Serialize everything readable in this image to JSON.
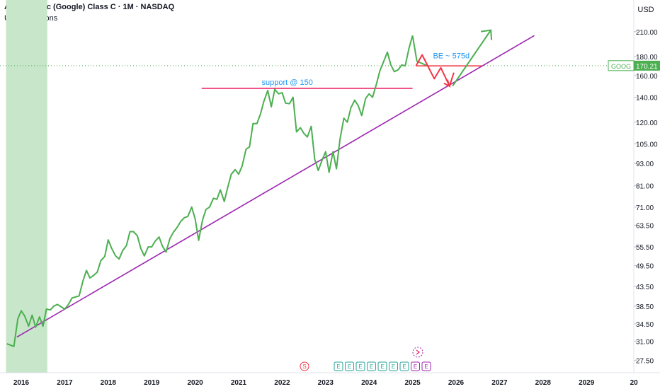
{
  "header": {
    "title": "Alphabet Inc (Google) Class C · 1M · NASDAQ",
    "indicator": "US Recessions",
    "currency": "USD"
  },
  "price_tag": {
    "symbol": "GOOG",
    "value": "170.21"
  },
  "event_markers": {
    "split_label": "S",
    "earnings_label": "E",
    "earnings_count": 9
  },
  "colors": {
    "price": "#4caf50",
    "trendline": "#9c27b0",
    "support": "#e91e63",
    "recession": "#c8e6c9",
    "forecast": "#f23645",
    "annotation_text": "#2196f3"
  },
  "chart_data": {
    "type": "line",
    "title": "Alphabet Inc (Google) Class C · 1M · NASDAQ",
    "xlabel": "",
    "ylabel": "",
    "y_scale": "log",
    "ylim": [
      25.5,
      226
    ],
    "xlim": [
      2015.65,
      2030.0
    ],
    "y_ticks": [
      "210.00",
      "180.00",
      "160.00",
      "140.00",
      "120.00",
      "105.00",
      "93.00",
      "81.00",
      "71.00",
      "63.50",
      "55.50",
      "49.50",
      "43.50",
      "38.50",
      "34.50",
      "31.00",
      "27.50"
    ],
    "x_ticks": [
      "2016",
      "2017",
      "2018",
      "2019",
      "2020",
      "2021",
      "2022",
      "2023",
      "2024",
      "2025",
      "2026",
      "2027",
      "2028",
      "2029",
      "20"
    ],
    "grid": true,
    "recession_band": {
      "from": 2015.65,
      "to": 2016.6
    },
    "series": [
      {
        "name": "",
        "x": [
          2015.67,
          2015.83,
          2015.92,
          2016.0,
          2016.08,
          2016.17,
          2016.25,
          2016.33,
          2016.42,
          2016.5,
          2016.58,
          2016.67,
          2016.75,
          2016.83,
          2017.0,
          2017.08,
          2017.17,
          2017.33,
          2017.42,
          2017.5,
          2017.58,
          2017.67,
          2017.75,
          2017.83,
          2017.92,
          2018.0,
          2018.08,
          2018.17,
          2018.25,
          2018.33,
          2018.42,
          2018.5,
          2018.58,
          2018.67,
          2018.75,
          2018.83,
          2018.92,
          2019.0,
          2019.08,
          2019.17,
          2019.25,
          2019.33,
          2019.42,
          2019.5,
          2019.58,
          2019.67,
          2019.75,
          2019.83,
          2019.92,
          2020.0,
          2020.08,
          2020.17,
          2020.25,
          2020.33,
          2020.42,
          2020.5,
          2020.58,
          2020.67,
          2020.75,
          2020.83,
          2020.92,
          2021.0,
          2021.08,
          2021.17,
          2021.25,
          2021.33,
          2021.42,
          2021.5,
          2021.58,
          2021.67,
          2021.75,
          2021.83,
          2021.92,
          2022.0,
          2022.08,
          2022.17,
          2022.25,
          2022.33,
          2022.42,
          2022.5,
          2022.58,
          2022.67,
          2022.75,
          2022.83,
          2022.92,
          2023.0,
          2023.08,
          2023.17,
          2023.25,
          2023.33,
          2023.42,
          2023.5,
          2023.58,
          2023.67,
          2023.75,
          2023.83,
          2023.92,
          2024.0,
          2024.08,
          2024.17,
          2024.25,
          2024.33,
          2024.42,
          2024.5,
          2024.58,
          2024.67,
          2024.75,
          2024.83,
          2024.92,
          2025.0
        ],
        "y": [
          30.5,
          30.0,
          35.5,
          37.4,
          36.2,
          34.0,
          36.4,
          33.8,
          36.0,
          34.0,
          37.8,
          37.6,
          38.5,
          38.9,
          37.8,
          38.8,
          40.5,
          41.0,
          45.0,
          48.0,
          45.8,
          46.6,
          47.5,
          51.0,
          52.3,
          58.0,
          55.0,
          52.5,
          51.5,
          54.2,
          56.0,
          61.0,
          61.0,
          59.5,
          55.0,
          52.5,
          55.5,
          55.5,
          57.5,
          59.0,
          55.7,
          53.8,
          58.5,
          60.8,
          62.5,
          65.0,
          66.5,
          67.0,
          71.0,
          66.0,
          57.8,
          65.5,
          70.0,
          71.0,
          75.0,
          74.5,
          79.0,
          73.5,
          80.2,
          87.0,
          89.5,
          87.0,
          91.5,
          101.5,
          103.0,
          119.0,
          119.0,
          126.0,
          136.5,
          146.0,
          132.0,
          147.0,
          143.0,
          144.0,
          135.0,
          134.5,
          140.0,
          113.0,
          116.0,
          112.0,
          109.5,
          117.0,
          95.5,
          89.0,
          95.0,
          100.0,
          88.0,
          100.0,
          90.0,
          108.0,
          123.0,
          120.0,
          131.0,
          137.5,
          133.0,
          125.0,
          139.0,
          143.0,
          140.0,
          152.0,
          165.0,
          174.0,
          185.0,
          171.0,
          164.0,
          166.0,
          171.0,
          170.0,
          190.0,
          205.0
        ]
      },
      {
        "name": "",
        "x": [
          2025.0,
          2025.1,
          2025.33
        ],
        "y": [
          205.0,
          175.0,
          170.21
        ]
      }
    ],
    "annotations": [
      {
        "kind": "trendline",
        "x": [
          2015.9,
          2027.8
        ],
        "y": [
          31.8,
          205.0
        ]
      },
      {
        "kind": "support",
        "text": "support @ 150",
        "x": [
          2020.15,
          2025.0
        ],
        "y": [
          148.0,
          148.0
        ]
      },
      {
        "kind": "forecast",
        "text": "BE ~ 575d",
        "x": [
          2025.08,
          2025.22,
          2025.5,
          2025.65,
          2025.85,
          2025.95
        ],
        "y": [
          170.0,
          182.0,
          157.0,
          168.0,
          150.0,
          163.0
        ]
      },
      {
        "kind": "forecast-band",
        "x": [
          2025.08,
          2026.6
        ],
        "y": [
          170.0,
          170.0
        ]
      },
      {
        "kind": "target",
        "x": [
          2025.92,
          2026.8
        ],
        "y": [
          150.0,
          212.0
        ]
      }
    ]
  }
}
